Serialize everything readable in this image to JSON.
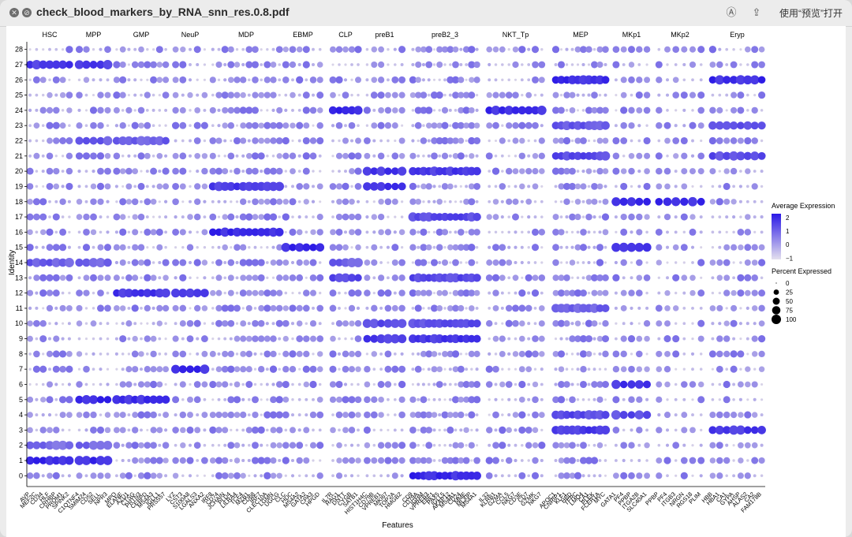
{
  "window": {
    "title": "check_blood_markers_by_RNA_snn_res.0.8.pdf",
    "open_with_label": "使用“预览”打开",
    "close_icon": "close-icon",
    "annotate_icon": "markup-icon",
    "share_icon": "share-icon"
  },
  "chart_data": {
    "type": "dotplot",
    "xlabel": "Features",
    "ylabel": "Identity",
    "identities": [
      "28",
      "27",
      "26",
      "25",
      "24",
      "23",
      "22",
      "21",
      "20",
      "19",
      "18",
      "17",
      "16",
      "15",
      "14",
      "13",
      "12",
      "11",
      "10",
      "9",
      "8",
      "7",
      "6",
      "5",
      "4",
      "3",
      "2",
      "1",
      "0"
    ],
    "groups": [
      {
        "name": "HSC",
        "features": [
          "AVP",
          "MEF2C",
          "CD34",
          "HLF",
          "CRHBP",
          "PROM1",
          "SPINK2"
        ]
      },
      {
        "name": "MPP",
        "features": [
          "C1QTNF4",
          "SMIM24",
          "CD52",
          "SELL",
          "NPR3"
        ]
      },
      {
        "name": "GMP",
        "features": [
          "MPO",
          "ELANE",
          "AZU1",
          "CTSG",
          "PRTN3",
          "CEBPD",
          "MS4A3",
          "IGLL1",
          "PRSS57"
        ]
      },
      {
        "name": "NeuP",
        "features": [
          "LYZ",
          "CST3",
          "S100A8",
          "LGALS3",
          "ANXA2"
        ]
      },
      {
        "name": "MDP",
        "features": [
          "IRF8",
          "CD74",
          "JCHAIN",
          "PLD4",
          "LILRA4",
          "TCF4",
          "MZB1",
          "CD68",
          "IRF7",
          "CLEC10A",
          "LGMN",
          "UGCG"
        ]
      },
      {
        "name": "EBMP",
        "features": [
          "CLC",
          "HDC",
          "MS4A2",
          "GATA2",
          "CPA3",
          "HPGD"
        ]
      },
      {
        "name": "CLP",
        "features": [
          "IL7R",
          "RAG1",
          "DNTT",
          "CYGB",
          "SATB1"
        ]
      },
      {
        "name": "preB1",
        "features": [
          "HIST1H4C",
          "CD79B",
          "VPREB1",
          "MKI67",
          "TOP2A",
          "HMGB2"
        ]
      },
      {
        "name": "preB2_3",
        "features": [
          "CD9",
          "CD79A",
          "IGHM",
          "VPREB3",
          "EBF1",
          "PAX5",
          "IGLL5",
          "AKAP12",
          "MS4A1",
          "CD24",
          "MME",
          "MLXIP",
          "MS4A1"
        ]
      },
      {
        "name": "NKT_Tp",
        "features": [
          "IL32",
          "KLRB1",
          "GZMA",
          "CCL5",
          "NKG7",
          "CD3E",
          "CD7",
          "GZMK",
          "NKG7"
        ]
      },
      {
        "name": "MEP",
        "features": [
          "APOC1",
          "CNRIP1",
          "KLF1",
          "HBD",
          "TFRC",
          "LMO4",
          "CA1",
          "PLEK",
          "FCER1A",
          "MYC"
        ]
      },
      {
        "name": "MKp1",
        "features": [
          "GATA1",
          "PF4",
          "PPBP",
          "ITGA2B",
          "SLC40A1"
        ]
      },
      {
        "name": "MKp2",
        "features": [
          "PPBP",
          "PF4",
          "ITGB3",
          "NRGN",
          "RGS18",
          "PLIM"
        ]
      },
      {
        "name": "Eryp",
        "features": [
          "HBB",
          "HBA1",
          "CA1",
          "GYPA",
          "AHSP",
          "ALAS2",
          "CA2",
          "FAM178B"
        ]
      }
    ],
    "highlights": [
      {
        "identity": "1",
        "groups": [
          "HSC",
          "MPP"
        ],
        "level": 2.0
      },
      {
        "identity": "2",
        "groups": [
          "HSC",
          "MPP"
        ],
        "level": 1.0
      },
      {
        "identity": "27",
        "groups": [
          "HSC",
          "MPP"
        ],
        "level": 1.8
      },
      {
        "identity": "5",
        "groups": [
          "GMP",
          "MPP"
        ],
        "level": 2.0
      },
      {
        "identity": "12",
        "groups": [
          "GMP",
          "NeuP"
        ],
        "level": 1.8
      },
      {
        "identity": "22",
        "groups": [
          "GMP",
          "MPP"
        ],
        "level": 1.2
      },
      {
        "identity": "7",
        "groups": [
          "NeuP"
        ],
        "level": 2.0
      },
      {
        "identity": "16",
        "groups": [
          "MDP"
        ],
        "level": 2.0
      },
      {
        "identity": "19",
        "groups": [
          "MDP",
          "preB1"
        ],
        "level": 1.8
      },
      {
        "identity": "15",
        "groups": [
          "EBMP",
          "MKp1"
        ],
        "level": 2.0
      },
      {
        "identity": "13",
        "groups": [
          "CLP",
          "preB2_3"
        ],
        "level": 1.5
      },
      {
        "identity": "14",
        "groups": [
          "CLP",
          "MPP",
          "HSC"
        ],
        "level": 1.2
      },
      {
        "identity": "20",
        "groups": [
          "preB1",
          "preB2_3"
        ],
        "level": 1.8
      },
      {
        "identity": "9",
        "groups": [
          "preB1",
          "preB2_3"
        ],
        "level": 1.8
      },
      {
        "identity": "10",
        "groups": [
          "preB2_3",
          "preB1"
        ],
        "level": 1.5
      },
      {
        "identity": "17",
        "groups": [
          "preB2_3"
        ],
        "level": 1.5
      },
      {
        "identity": "0",
        "groups": [
          "preB2_3"
        ],
        "level": 2.0
      },
      {
        "identity": "24",
        "groups": [
          "NKT_Tp",
          "CLP"
        ],
        "level": 2.0
      },
      {
        "identity": "26",
        "groups": [
          "MEP",
          "Eryp"
        ],
        "level": 2.0
      },
      {
        "identity": "21",
        "groups": [
          "MEP",
          "Eryp"
        ],
        "level": 1.5
      },
      {
        "identity": "23",
        "groups": [
          "MEP",
          "Eryp"
        ],
        "level": 1.3
      },
      {
        "identity": "11",
        "groups": [
          "MEP"
        ],
        "level": 1.2
      },
      {
        "identity": "3",
        "groups": [
          "MEP",
          "Eryp"
        ],
        "level": 1.8
      },
      {
        "identity": "4",
        "groups": [
          "MEP",
          "MKp1"
        ],
        "level": 1.5
      },
      {
        "identity": "6",
        "groups": [
          "MKp1"
        ],
        "level": 1.8
      },
      {
        "identity": "18",
        "groups": [
          "MKp2",
          "MKp1"
        ],
        "level": 2.0
      }
    ],
    "legend_expression": {
      "title": "Average Expression",
      "ticks": [
        2,
        1,
        0,
        -1
      ],
      "low_color": "#d9d4e8",
      "high_color": "#2b19e6"
    },
    "legend_percent": {
      "title": "Percent Expressed",
      "ticks": [
        0,
        25,
        50,
        75,
        100
      ]
    }
  }
}
